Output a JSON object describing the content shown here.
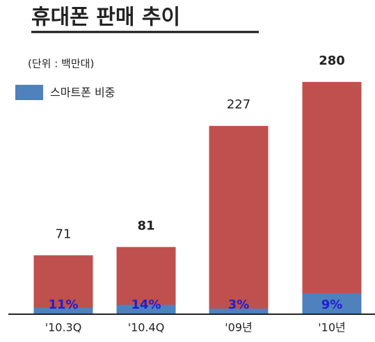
{
  "chart_data": {
    "type": "bar",
    "title": "휴대폰 판매 추이",
    "subtitle": "(단위 : 백만대)",
    "categories": [
      "'10.3Q",
      "'10.4Q",
      "'09년",
      "'10년"
    ],
    "series": [
      {
        "color": "#c0504d",
        "values": [
          71,
          81,
          227,
          280
        ]
      },
      {
        "name": "스마트폰 비중",
        "color": "#4f81bd",
        "values": [
          11,
          14,
          3,
          9
        ],
        "value_labels": [
          "11%",
          "14%",
          "3%",
          "9%"
        ]
      }
    ],
    "ylim": [
      0,
      300
    ],
    "legend": "upper left"
  }
}
